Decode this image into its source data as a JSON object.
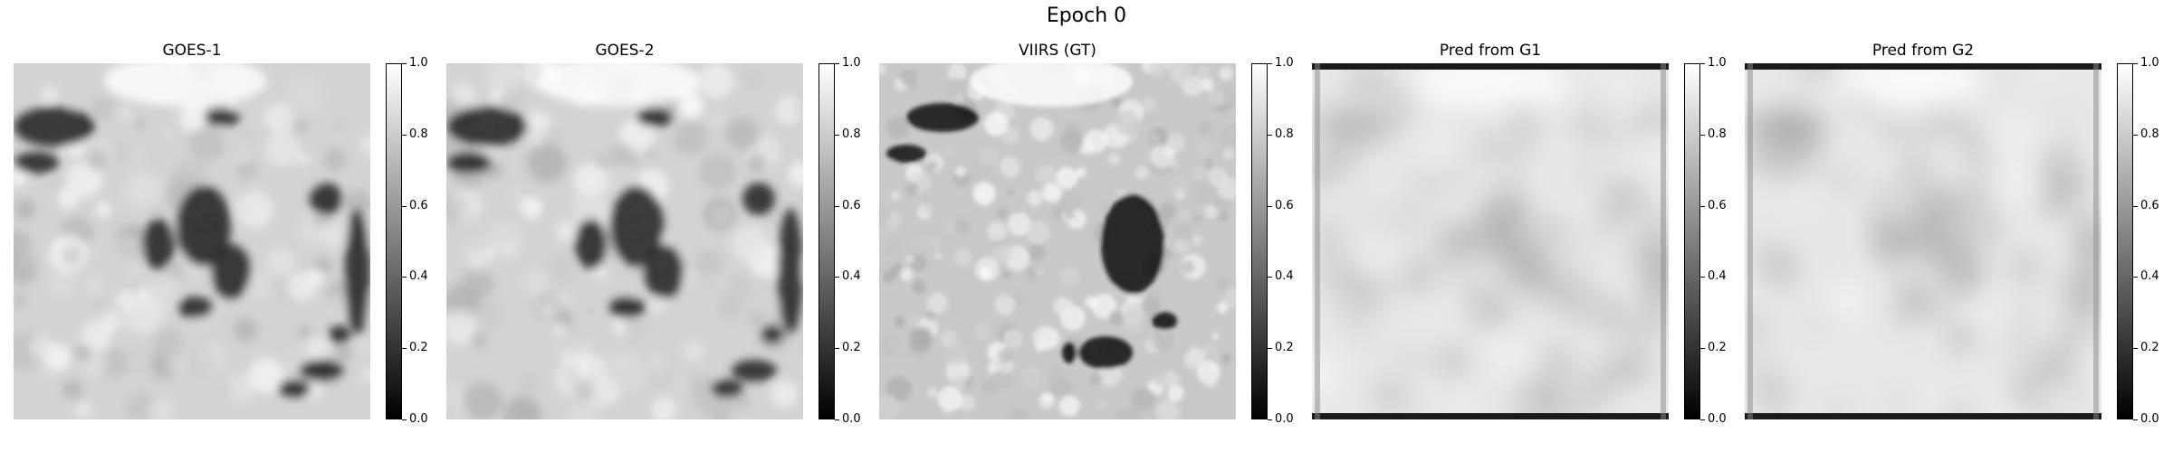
{
  "figure": {
    "suptitle": "Epoch 0"
  },
  "colorbar": {
    "ticks": [
      "0.0",
      "0.2",
      "0.4",
      "0.6",
      "0.8",
      "1.0"
    ]
  },
  "panels": [
    {
      "title": "GOES-1",
      "style": "goes"
    },
    {
      "title": "GOES-2",
      "style": "goes"
    },
    {
      "title": "VIIRS (GT)",
      "style": "viirs"
    },
    {
      "title": "Pred from G1",
      "style": "pred"
    },
    {
      "title": "Pred from G2",
      "style": "pred"
    }
  ],
  "chart_data": {
    "type": "heatmap",
    "title": "Epoch 0",
    "colormap": "gray",
    "panels": [
      "GOES-1",
      "GOES-2",
      "VIIRS (GT)",
      "Pred from G1",
      "Pred from G2"
    ],
    "colorbar_range": [
      0.0,
      1.0
    ],
    "colorbar_ticks": [
      0.0,
      0.2,
      0.4,
      0.6,
      0.8,
      1.0
    ],
    "colors": {
      "low": "#000000",
      "high": "#ffffff"
    }
  }
}
